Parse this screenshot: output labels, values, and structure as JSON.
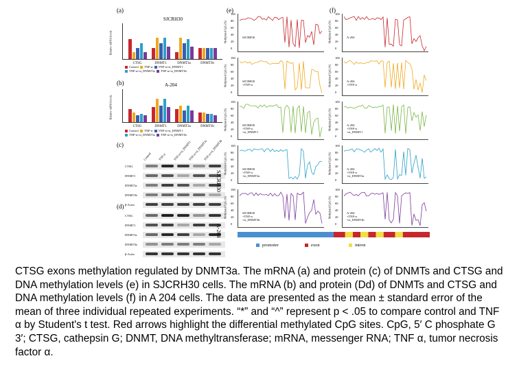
{
  "figure": {
    "panel_labels": {
      "a": "(a)",
      "b": "(b)",
      "c": "(c)",
      "d": "(d)",
      "e": "(e)",
      "f": "(f)"
    },
    "bar_titles": [
      "SJCRH30",
      "A-204"
    ],
    "bar_ylabel": "Relative mRNA levels",
    "bar_categories": [
      "CTSG",
      "DNMT1",
      "DNMT3a",
      "DNMT3b"
    ],
    "legend": [
      "Control",
      "TNF-α",
      "TNF-α+si_DNMT1",
      "TNF-α+si_DNMT3a",
      "TNF-α+si_DNMT3b"
    ],
    "colors": [
      "#c8262d",
      "#f0a81c",
      "#3a5fb0",
      "#2aa0c8",
      "#7a3a9a"
    ],
    "blot_lanes": [
      "Control",
      "TNF-α",
      "TNF-α+si_DNMT1",
      "TNF-α+si_DNMT3a",
      "TNF-α+si_DNMT3b"
    ],
    "blot_rows": [
      "CTSG",
      "DNMT1",
      "DNMT3a",
      "DNMT3b",
      "β-Actin"
    ],
    "blot_side": [
      "SJCRH30",
      "A-204"
    ],
    "meth_ylabel": "Methylated CpG (%)",
    "meth_yticks": [
      "100",
      "80",
      "60",
      "40",
      "20",
      "0"
    ],
    "meth_labels_e": [
      "SJCRH30",
      "SJCRH30\n+TNF-α",
      "SJCRH30\n+TNF-α\n+si_DNMT1",
      "SJCRH30\n+TNF-α\n+si_DNMT3a",
      "SJCRH30\n+TNF-α\n+si_DNMT3b"
    ],
    "meth_labels_f": [
      "A-204",
      "A-204\n+TNF-α",
      "A-204\n+TNF-α\n+si_DNMT1",
      "A-204\n+TNF-α\n+si_DNMT3a",
      "A-204\n+TNF-α\n+si_DNMT3b"
    ],
    "meth_colors": [
      "#c8262d",
      "#f0a81c",
      "#7ab648",
      "#2aa0c8",
      "#7a3a9a"
    ],
    "gene_legend": [
      "promoter",
      "exon",
      "intron"
    ],
    "gene_colors": {
      "promoter": "#4a8fd0",
      "exon": "#c8262d",
      "intron": "#f0e040"
    }
  },
  "caption": "CTSG exons methylation regulated by DNMT3a. The mRNA (a) and protein (c) of DNMTs and CTSG and DNA methylation levels (e) in SJCRH30 cells. The mRNA (b) and protein (Dd) of DNMTs and CTSG and DNA methylation levels (f) in A 204 cells. The data are presented as the mean ± standard error of the mean of three individual repeated experiments. “*” and “^” represent p < .05 to compare control and TNF α by Student's t test. Red arrows highlight the differential methylated CpG sites. CpG, 5′ C phosphate G 3′; CTSG, cathepsin G; DNMT, DNA methyltransferase; mRNA, messenger RNA; TNF α, tumor necrosis factor α."
}
